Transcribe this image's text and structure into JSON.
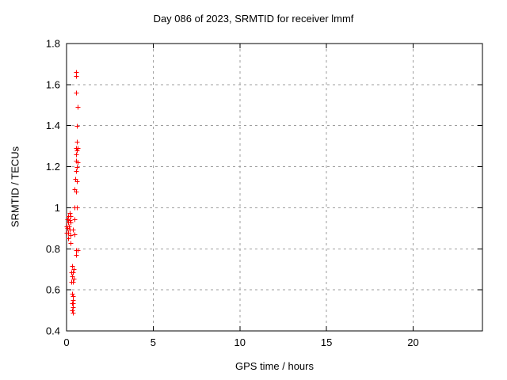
{
  "page": {
    "background": "#ffffff"
  },
  "chart_data": {
    "type": "scatter",
    "title": "Day 086 of 2023, SRMTID for receiver lmmf",
    "xlabel": "GPS time / hours",
    "ylabel": "SRMTID / TECUs",
    "xlim": [
      0,
      24
    ],
    "ylim": [
      0.4,
      1.8
    ],
    "xticks": [
      0,
      5,
      10,
      15,
      20
    ],
    "yticks": [
      0.4,
      0.6,
      0.8,
      1,
      1.2,
      1.4,
      1.6,
      1.8
    ],
    "grid": true,
    "grid_style": "dashed",
    "grid_color": "#9e9e9e",
    "axis_color": "#000000",
    "legend": "none",
    "marker": "plus",
    "marker_color": "#ff0000",
    "marker_size": 7,
    "series": [
      {
        "name": "SRMTID",
        "points": [
          [
            0.55,
            1.66
          ],
          [
            0.55,
            1.64
          ],
          [
            0.55,
            1.56
          ],
          [
            0.63,
            1.49
          ],
          [
            0.6,
            1.4
          ],
          [
            0.6,
            1.32
          ],
          [
            0.53,
            1.29
          ],
          [
            0.62,
            1.29
          ],
          [
            0.58,
            1.28
          ],
          [
            0.57,
            1.26
          ],
          [
            0.53,
            1.23
          ],
          [
            0.62,
            1.22
          ],
          [
            0.58,
            1.2
          ],
          [
            0.54,
            1.18
          ],
          [
            0.5,
            1.14
          ],
          [
            0.58,
            1.13
          ],
          [
            0.47,
            1.09
          ],
          [
            0.55,
            1.08
          ],
          [
            0.45,
            1.0
          ],
          [
            0.6,
            1.0
          ],
          [
            0.18,
            0.975
          ],
          [
            0.1,
            0.96
          ],
          [
            0.25,
            0.96
          ],
          [
            0.05,
            0.945
          ],
          [
            0.45,
            0.945
          ],
          [
            0.2,
            0.94
          ],
          [
            0.1,
            0.93
          ],
          [
            0.25,
            0.93
          ],
          [
            0.02,
            0.91
          ],
          [
            0.15,
            0.91
          ],
          [
            0.05,
            0.9
          ],
          [
            0.2,
            0.895
          ],
          [
            0.38,
            0.895
          ],
          [
            0.02,
            0.88
          ],
          [
            0.1,
            0.878
          ],
          [
            0.45,
            0.872
          ],
          [
            0.25,
            0.865
          ],
          [
            0.1,
            0.85
          ],
          [
            0.25,
            0.828
          ],
          [
            0.53,
            0.795
          ],
          [
            0.62,
            0.795
          ],
          [
            0.55,
            0.77
          ],
          [
            0.3,
            0.715
          ],
          [
            0.4,
            0.7
          ],
          [
            0.28,
            0.685
          ],
          [
            0.35,
            0.685
          ],
          [
            0.3,
            0.668
          ],
          [
            0.4,
            0.655
          ],
          [
            0.28,
            0.64
          ],
          [
            0.35,
            0.64
          ],
          [
            0.33,
            0.58
          ],
          [
            0.37,
            0.571
          ],
          [
            0.37,
            0.552
          ],
          [
            0.3,
            0.535
          ],
          [
            0.37,
            0.535
          ],
          [
            0.37,
            0.517
          ],
          [
            0.33,
            0.5
          ],
          [
            0.35,
            0.49
          ]
        ]
      }
    ]
  }
}
